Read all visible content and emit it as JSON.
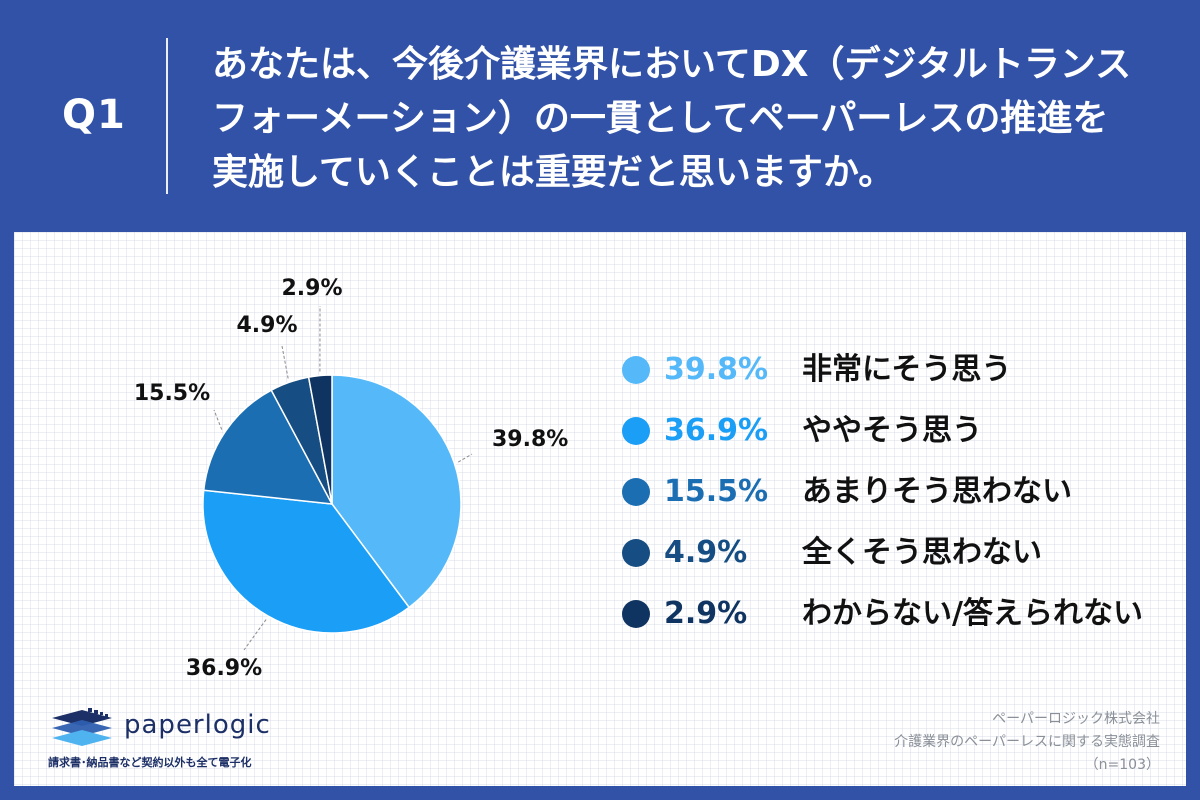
{
  "question": {
    "label": "Q1",
    "lines": [
      "あなたは、今後介護業界においてDX（デジタルトランス",
      "フォーメーション）の一貫としてペーパーレスの推進を",
      "実施していくことは重要だと思いますか。"
    ]
  },
  "chart_data": {
    "type": "pie",
    "start_angle_deg": 0,
    "direction": "clockwise",
    "slices": [
      {
        "label": "非常にそう思う",
        "value": 39.8,
        "value_text": "39.8%",
        "color": "#55b9f9"
      },
      {
        "label": "ややそう思う",
        "value": 36.9,
        "value_text": "36.9%",
        "color": "#1a9ef6"
      },
      {
        "label": "あまりそう思わない",
        "value": 15.5,
        "value_text": "15.5%",
        "color": "#1c6eb3"
      },
      {
        "label": "全くそう思わない",
        "value": 4.9,
        "value_text": "4.9%",
        "color": "#164d82"
      },
      {
        "label": "わからない/答えられない",
        "value": 2.9,
        "value_text": "2.9%",
        "color": "#0f3461"
      }
    ],
    "legend_position": "right"
  },
  "logo": {
    "name": "paperlogic",
    "tagline": "請求書･納品書など契約以外も全て電子化"
  },
  "footer": {
    "company": "ペーパーロジック株式会社",
    "survey": "介護業界のペーパーレスに関する実態調査",
    "sample": "（n=103）"
  }
}
